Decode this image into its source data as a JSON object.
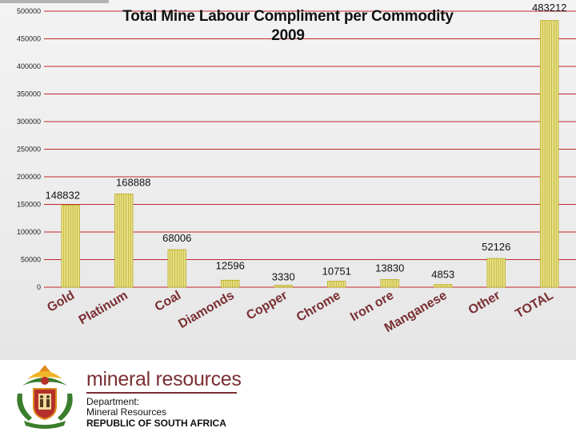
{
  "chart_data": {
    "type": "bar",
    "title_line1": "Total Mine Labour Compliment per Commodity",
    "title_line2": "2009",
    "categories": [
      "Gold",
      "Platinum",
      "Coal",
      "Diamonds",
      "Copper",
      "Chrome",
      "Iron ore",
      "Manganese",
      "Other",
      "TOTAL"
    ],
    "values": [
      148832,
      168888,
      68006,
      12596,
      3330,
      10751,
      13830,
      4853,
      52126,
      483212
    ],
    "value_labels": [
      "148832",
      "168888",
      "68006",
      "12596",
      "3330",
      "10751",
      "13830",
      "4853",
      "52126",
      "483212"
    ],
    "y_ticks": [
      0,
      50000,
      100000,
      150000,
      200000,
      250000,
      300000,
      350000,
      400000,
      450000,
      500000
    ],
    "y_tick_labels": [
      "0",
      "50000",
      "100000",
      "150000",
      "200000",
      "250000",
      "300000",
      "350000",
      "400000",
      "450000",
      "500000"
    ],
    "ylim": [
      0,
      500000
    ],
    "xlabel": "",
    "ylabel": "",
    "grid": true,
    "colors": {
      "bar": "#e8e08a",
      "bar_stripe": "#b8aa1c",
      "gridline": "#c1272d",
      "axis_label": "#7a2f33"
    }
  },
  "footer": {
    "brand_name": "mineral resources",
    "department_label": "Department:",
    "department_name": "Mineral Resources",
    "country": "REPUBLIC OF SOUTH AFRICA",
    "brand_color": "#7a2f33"
  }
}
